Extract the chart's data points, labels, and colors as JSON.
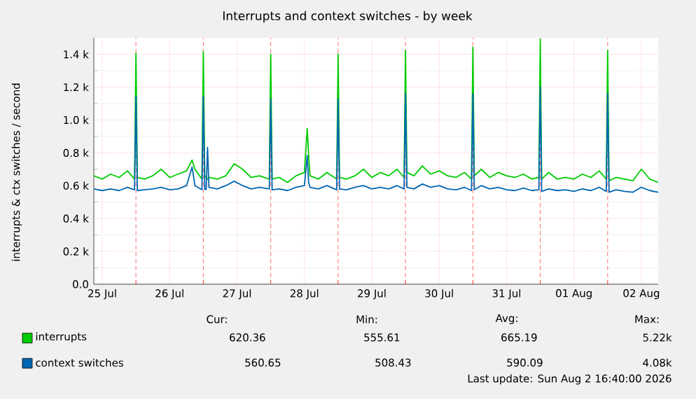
{
  "chart_data": {
    "type": "line",
    "title": "Interrupts and context switches - by week",
    "ylabel": "interrupts & ctx switches / second",
    "x": [
      "2026-07-25T09:00",
      "2026-07-25T12:00",
      "2026-07-25T15:00",
      "2026-07-25T18:00",
      "2026-07-25T21:00",
      "2026-07-25T23:30",
      "2026-07-26T00:00",
      "2026-07-26T00:30",
      "2026-07-26T03:00",
      "2026-07-26T06:00",
      "2026-07-26T09:00",
      "2026-07-26T12:00",
      "2026-07-26T15:00",
      "2026-07-26T18:00",
      "2026-07-26T20:00",
      "2026-07-26T21:00",
      "2026-07-26T23:30",
      "2026-07-27T00:00",
      "2026-07-27T00:30",
      "2026-07-27T01:00",
      "2026-07-27T01:30",
      "2026-07-27T02:00",
      "2026-07-27T05:00",
      "2026-07-27T08:00",
      "2026-07-27T11:00",
      "2026-07-27T14:00",
      "2026-07-27T17:00",
      "2026-07-27T20:00",
      "2026-07-27T23:30",
      "2026-07-28T00:00",
      "2026-07-28T00:30",
      "2026-07-28T03:00",
      "2026-07-28T06:00",
      "2026-07-28T09:00",
      "2026-07-28T12:00",
      "2026-07-28T13:00",
      "2026-07-28T13:30",
      "2026-07-28T14:00",
      "2026-07-28T17:00",
      "2026-07-28T20:00",
      "2026-07-28T23:30",
      "2026-07-29T00:00",
      "2026-07-29T00:30",
      "2026-07-29T03:00",
      "2026-07-29T06:00",
      "2026-07-29T09:00",
      "2026-07-29T12:00",
      "2026-07-29T15:00",
      "2026-07-29T18:00",
      "2026-07-29T21:00",
      "2026-07-29T23:30",
      "2026-07-30T00:00",
      "2026-07-30T00:30",
      "2026-07-30T03:00",
      "2026-07-30T06:00",
      "2026-07-30T09:00",
      "2026-07-30T12:00",
      "2026-07-30T15:00",
      "2026-07-30T18:00",
      "2026-07-30T21:00",
      "2026-07-30T23:30",
      "2026-07-31T00:00",
      "2026-07-31T00:30",
      "2026-07-31T03:00",
      "2026-07-31T06:00",
      "2026-07-31T09:00",
      "2026-07-31T12:00",
      "2026-07-31T15:00",
      "2026-07-31T18:00",
      "2026-07-31T21:00",
      "2026-07-31T23:30",
      "2026-08-01T00:00",
      "2026-08-01T00:30",
      "2026-08-01T03:00",
      "2026-08-01T06:00",
      "2026-08-01T09:00",
      "2026-08-01T12:00",
      "2026-08-01T15:00",
      "2026-08-01T18:00",
      "2026-08-01T21:00",
      "2026-08-01T23:30",
      "2026-08-02T00:00",
      "2026-08-02T00:30",
      "2026-08-02T03:00",
      "2026-08-02T06:00",
      "2026-08-02T09:00",
      "2026-08-02T12:00",
      "2026-08-02T15:00",
      "2026-08-02T18:00"
    ],
    "series": [
      {
        "name": "interrupts",
        "color": "#00cc00",
        "values": [
          660,
          640,
          670,
          650,
          690,
          640,
          1406,
          650,
          640,
          660,
          700,
          650,
          670,
          690,
          756,
          700,
          640,
          1415,
          660,
          650,
          640,
          650,
          640,
          660,
          733,
          700,
          650,
          660,
          640,
          1400,
          640,
          650,
          620,
          660,
          680,
          948,
          790,
          660,
          640,
          680,
          640,
          1400,
          650,
          640,
          660,
          700,
          650,
          680,
          660,
          700,
          650,
          1423,
          680,
          660,
          720,
          670,
          690,
          660,
          650,
          680,
          640,
          1443,
          660,
          700,
          650,
          680,
          660,
          650,
          670,
          640,
          650,
          1492,
          640,
          680,
          640,
          650,
          640,
          670,
          650,
          690,
          640,
          1423,
          630,
          650,
          640,
          630,
          700,
          640,
          620
        ]
      },
      {
        "name": "context switches",
        "color": "#0066b3",
        "values": [
          580,
          570,
          580,
          570,
          590,
          575,
          1143,
          570,
          575,
          580,
          590,
          575,
          580,
          600,
          713,
          600,
          575,
          1143,
          580,
          575,
          833,
          590,
          580,
          600,
          627,
          600,
          580,
          590,
          580,
          1128,
          575,
          580,
          570,
          590,
          600,
          784,
          620,
          590,
          580,
          600,
          575,
          1128,
          580,
          575,
          590,
          600,
          580,
          590,
          580,
          600,
          580,
          1162,
          590,
          580,
          610,
          590,
          600,
          580,
          575,
          590,
          570,
          1160,
          575,
          600,
          580,
          590,
          575,
          570,
          585,
          570,
          575,
          1200,
          565,
          580,
          570,
          575,
          565,
          580,
          570,
          590,
          565,
          1162,
          560,
          575,
          565,
          560,
          590,
          570,
          560
        ]
      }
    ],
    "xlim": [
      "2026-07-25T09:00",
      "2026-08-02T18:00"
    ],
    "xticks": [
      {
        "value": "2026-07-25T12:00",
        "label": "25 Jul"
      },
      {
        "value": "2026-07-26T00:00",
        "label": null
      },
      {
        "value": "2026-07-26T12:00",
        "label": "26 Jul"
      },
      {
        "value": "2026-07-27T00:00",
        "label": null
      },
      {
        "value": "2026-07-27T12:00",
        "label": "27 Jul"
      },
      {
        "value": "2026-07-28T00:00",
        "label": null
      },
      {
        "value": "2026-07-28T12:00",
        "label": "28 Jul"
      },
      {
        "value": "2026-07-29T00:00",
        "label": null
      },
      {
        "value": "2026-07-29T12:00",
        "label": "29 Jul"
      },
      {
        "value": "2026-07-30T00:00",
        "label": null
      },
      {
        "value": "2026-07-30T12:00",
        "label": "30 Jul"
      },
      {
        "value": "2026-07-31T00:00",
        "label": null
      },
      {
        "value": "2026-07-31T12:00",
        "label": "31 Jul"
      },
      {
        "value": "2026-08-01T00:00",
        "label": null
      },
      {
        "value": "2026-08-01T12:00",
        "label": "01 Aug"
      },
      {
        "value": "2026-08-02T00:00",
        "label": null
      },
      {
        "value": "2026-08-02T12:00",
        "label": "02 Aug"
      }
    ],
    "ylim": [
      0,
      1500
    ],
    "yticks": [
      {
        "value": 0,
        "label": "0.0"
      },
      {
        "value": 200,
        "label": "0.2 k"
      },
      {
        "value": 400,
        "label": "0.4 k"
      },
      {
        "value": 600,
        "label": "0.6 k"
      },
      {
        "value": 800,
        "label": "0.8 k"
      },
      {
        "value": 1000,
        "label": "1.0 k"
      },
      {
        "value": 1200,
        "label": "1.2 k"
      },
      {
        "value": 1400,
        "label": "1.4 k"
      }
    ],
    "grid": true,
    "legend": "bottom",
    "marker": "none",
    "line_style": "solid",
    "annotations": [
      "Cur:",
      "Min:",
      "Avg:",
      "Max:",
      "620.36",
      "555.61",
      "665.19",
      "5.22k",
      "560.65",
      "508.43",
      "590.09",
      "4.08k",
      "Last update: Sun Aug  2 16:40:00 2026"
    ]
  }
}
